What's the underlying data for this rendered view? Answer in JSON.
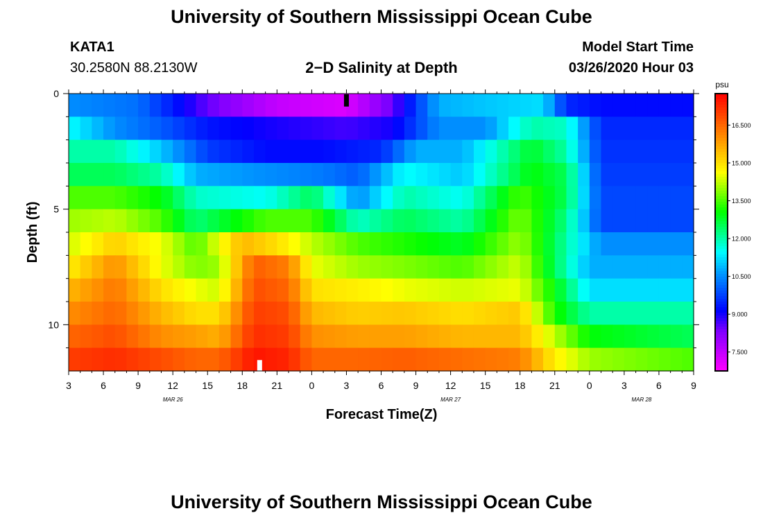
{
  "page": {
    "title_top": "University of Southern Mississippi Ocean Cube",
    "title_bottom": "University of Southern Mississippi Ocean Cube",
    "station_id": "KATA1",
    "station_coords": "30.2580N 88.2130W",
    "model_start_label": "Model Start Time",
    "model_start_value": "03/26/2020 Hour 03"
  },
  "chart_data": {
    "type": "heatmap",
    "title": "2−D Salinity at Depth",
    "xlabel": "Forecast Time(Z)",
    "ylabel": "Depth (ft)",
    "x_ticks": [
      "3",
      "6",
      "9",
      "12",
      "15",
      "18",
      "21",
      "0",
      "3",
      "6",
      "9",
      "12",
      "15",
      "18",
      "21",
      "0",
      "3",
      "6",
      "9"
    ],
    "x_hours_range": [
      3,
      57
    ],
    "date_labels": [
      {
        "text": "MAR 26",
        "hour": 12
      },
      {
        "text": "MAR 27",
        "hour": 36
      },
      {
        "text": "MAR 28",
        "hour": 52.5
      }
    ],
    "y_ticks": [
      "0",
      "5",
      "10"
    ],
    "y_tick_values": [
      0,
      5,
      10
    ],
    "ylim": [
      0,
      12
    ],
    "depth_levels": [
      0.5,
      1.5,
      2.5,
      3.5,
      4.5,
      5.5,
      6.5,
      7.5,
      8.5,
      9.5,
      10.5,
      11.5
    ],
    "colorbar": {
      "unit": "psu",
      "range": [
        6.75,
        17.75
      ],
      "tick_labels": [
        "7.500",
        "9.000",
        "10.500",
        "12.000",
        "13.500",
        "15.000",
        "16.500"
      ],
      "tick_values": [
        7.5,
        9.0,
        10.5,
        12.0,
        13.5,
        15.0,
        16.5
      ],
      "colors": [
        "#ff00ff",
        "#c000ff",
        "#8000ff",
        "#0000ff",
        "#0050ff",
        "#00a0ff",
        "#00ffff",
        "#00ff80",
        "#00ff00",
        "#80ff00",
        "#ffff00",
        "#ffc000",
        "#ff8000",
        "#ff4000",
        "#ff0000"
      ]
    },
    "series": [
      {
        "name": "0.5 ft",
        "hours": [
          3,
          9,
          15,
          21,
          27,
          31,
          35,
          39,
          44,
          46,
          49,
          57
        ],
        "values": [
          10.5,
          10.2,
          8.5,
          7.5,
          7.2,
          8.5,
          10.8,
          11.0,
          11.2,
          9.5,
          9.2,
          9.2
        ]
      },
      {
        "name": "1.5 ft",
        "hours": [
          3,
          7,
          11,
          15,
          20,
          27,
          31,
          35,
          39,
          43,
          46,
          49,
          57
        ],
        "values": [
          11.5,
          10.5,
          10.0,
          9.3,
          9.0,
          8.7,
          9.0,
          10.5,
          10.5,
          12.0,
          11.8,
          9.5,
          9.5
        ]
      },
      {
        "name": "2.5 ft",
        "hours": [
          3,
          7,
          11,
          15,
          20,
          25,
          30,
          33,
          37,
          43,
          46,
          49,
          57
        ],
        "values": [
          12.0,
          12.0,
          11.0,
          9.7,
          9.2,
          9.2,
          9.5,
          10.8,
          10.8,
          12.8,
          12.0,
          9.6,
          9.6
        ]
      },
      {
        "name": "3.5 ft",
        "hours": [
          3,
          7,
          11,
          14,
          20,
          25,
          28,
          32,
          37,
          43,
          46,
          49,
          57
        ],
        "values": [
          12.5,
          12.5,
          12.0,
          10.8,
          10.5,
          10.3,
          10.0,
          11.5,
          11.0,
          13.0,
          12.5,
          9.7,
          9.7
        ]
      },
      {
        "name": "4.5 ft",
        "hours": [
          3,
          7,
          11,
          14,
          20,
          24,
          28,
          32,
          37,
          42,
          46,
          49,
          57
        ],
        "values": [
          13.5,
          13.5,
          13.0,
          11.8,
          11.5,
          12.5,
          10.5,
          12.0,
          11.5,
          13.5,
          12.5,
          9.8,
          9.8
        ]
      },
      {
        "name": "5.5 ft",
        "hours": [
          3,
          7,
          11,
          14,
          20,
          24,
          28,
          32,
          37,
          42,
          46,
          49,
          57
        ],
        "values": [
          14.0,
          14.2,
          13.5,
          12.3,
          13.5,
          13.5,
          11.8,
          12.5,
          12.0,
          13.8,
          12.2,
          9.8,
          9.8
        ]
      },
      {
        "name": "6.5 ft",
        "hours": [
          3,
          7,
          11,
          14,
          18,
          21,
          24,
          28,
          32,
          37,
          42,
          46,
          49,
          57
        ],
        "values": [
          14.3,
          15.2,
          14.5,
          13.5,
          15.5,
          15.0,
          14.2,
          13.5,
          13.2,
          12.8,
          14.0,
          12.0,
          10.5,
          10.5
        ]
      },
      {
        "name": "7.5 ft",
        "hours": [
          3,
          7,
          11,
          14,
          16,
          19,
          22,
          24,
          28,
          32,
          37,
          42,
          45,
          48,
          57
        ],
        "values": [
          14.8,
          16.0,
          14.5,
          13.8,
          14.0,
          16.6,
          16.2,
          14.5,
          14.0,
          13.8,
          13.5,
          14.3,
          12.5,
          10.8,
          10.8
        ]
      },
      {
        "name": "8.5 ft",
        "hours": [
          3,
          7,
          11,
          14,
          16,
          19,
          22,
          24,
          28,
          32,
          37,
          42,
          45,
          48,
          57
        ],
        "values": [
          15.5,
          16.3,
          15.0,
          14.5,
          14.3,
          16.8,
          16.5,
          15.0,
          14.8,
          14.5,
          14.3,
          14.5,
          13.0,
          11.2,
          11.2
        ]
      },
      {
        "name": "9.5 ft",
        "hours": [
          3,
          7,
          11,
          14,
          16,
          19,
          22,
          24,
          28,
          32,
          37,
          42,
          45,
          48,
          57
        ],
        "values": [
          16.0,
          16.5,
          15.5,
          15.0,
          15.0,
          17.0,
          16.8,
          15.5,
          15.2,
          15.3,
          15.0,
          15.3,
          13.2,
          12.0,
          12.0
        ]
      },
      {
        "name": "10.5 ft",
        "hours": [
          3,
          7,
          11,
          14,
          16,
          19,
          22,
          24,
          28,
          32,
          37,
          42,
          45,
          48,
          57
        ],
        "values": [
          16.5,
          16.8,
          16.0,
          15.8,
          15.6,
          17.2,
          17.0,
          16.0,
          15.8,
          15.8,
          15.5,
          15.5,
          14.2,
          13.0,
          12.5
        ]
      },
      {
        "name": "11.5 ft",
        "hours": [
          3,
          7,
          11,
          14,
          16,
          19,
          22,
          24,
          28,
          32,
          37,
          42,
          45,
          48,
          57
        ],
        "values": [
          17.0,
          17.2,
          16.8,
          16.5,
          16.5,
          17.5,
          17.3,
          16.5,
          16.5,
          16.6,
          16.4,
          16.2,
          14.8,
          14.0,
          13.5
        ]
      }
    ],
    "markers": [
      {
        "name": "top-marker",
        "hour": 27,
        "depth_range": [
          0,
          0.5
        ],
        "color": "#000000"
      },
      {
        "name": "bottom-marker",
        "hour": 19.5,
        "depth_range": [
          11.5,
          12
        ],
        "color": "#ffffff"
      }
    ]
  }
}
